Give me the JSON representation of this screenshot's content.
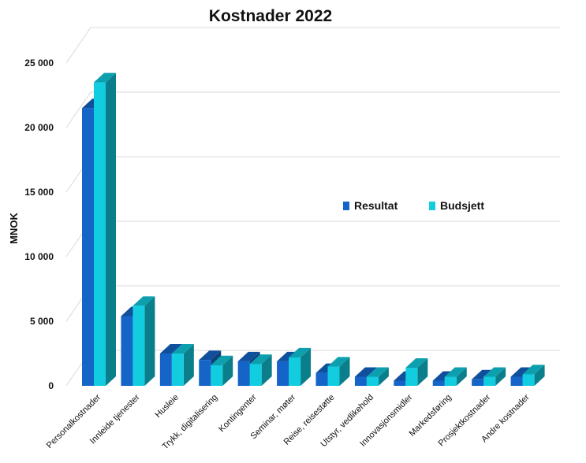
{
  "chart_data": {
    "type": "bar",
    "title": "Kostnader 2022",
    "ylabel": "MNOK",
    "xlabel": "",
    "ylim": [
      0,
      25000
    ],
    "yticks": [
      0,
      5000,
      10000,
      15000,
      20000,
      25000
    ],
    "ytick_labels": [
      "0",
      "5 000",
      "10 000",
      "15 000",
      "20 000",
      "25 000"
    ],
    "categories": [
      "Personalkostnader",
      "Innleide tjenester",
      "Husleie",
      "Trykk, digitalisering",
      "Kontingenter",
      "Seminar, møter",
      "Reise, reisestøtte",
      "Utstyr, vedlikehold",
      "Innovasjonsmidler",
      "Markedsføring",
      "Prosjektkostnader",
      "Andre kostnader"
    ],
    "series": [
      {
        "name": "Resultat",
        "values": [
          21500,
          5400,
          2500,
          2000,
          1900,
          1900,
          1000,
          700,
          400,
          400,
          500,
          700
        ]
      },
      {
        "name": "Budsjett",
        "values": [
          23500,
          6200,
          2500,
          1600,
          1700,
          2200,
          1500,
          700,
          1400,
          700,
          700,
          900
        ]
      }
    ],
    "colors": {
      "Resultat": "#1565c8",
      "Budsjett": "#12cce0"
    },
    "style": "3d-clustered-column",
    "grid": true,
    "legend_position": "center-right"
  }
}
